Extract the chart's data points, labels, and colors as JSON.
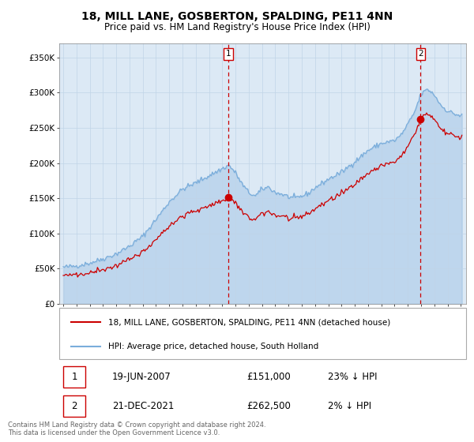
{
  "title": "18, MILL LANE, GOSBERTON, SPALDING, PE11 4NN",
  "subtitle": "Price paid vs. HM Land Registry's House Price Index (HPI)",
  "title_fontsize": 10,
  "subtitle_fontsize": 8.5,
  "bg_color": "#dce9f5",
  "ylim": [
    0,
    370000
  ],
  "yticks": [
    0,
    50000,
    100000,
    150000,
    200000,
    250000,
    300000,
    350000
  ],
  "ytick_labels": [
    "£0",
    "£50K",
    "£100K",
    "£150K",
    "£200K",
    "£250K",
    "£300K",
    "£350K"
  ],
  "sale1_date_x": 2007.47,
  "sale1_price": 151000,
  "sale1_label": "1",
  "sale2_date_x": 2021.97,
  "sale2_price": 262500,
  "sale2_label": "2",
  "legend_line1": "18, MILL LANE, GOSBERTON, SPALDING, PE11 4NN (detached house)",
  "legend_line2": "HPI: Average price, detached house, South Holland",
  "line1_color": "#cc0000",
  "line2_color": "#7aaddb",
  "table_row1": [
    "1",
    "19-JUN-2007",
    "£151,000",
    "23% ↓ HPI"
  ],
  "table_row2": [
    "2",
    "21-DEC-2021",
    "£262,500",
    "2% ↓ HPI"
  ],
  "footer": "Contains HM Land Registry data © Crown copyright and database right 2024.\nThis data is licensed under the Open Government Licence v3.0.",
  "marker_color": "#cc0000",
  "vline_color": "#cc0000",
  "grid_color": "#c0d4e8",
  "xlim_left": 1994.7,
  "xlim_right": 2025.4
}
